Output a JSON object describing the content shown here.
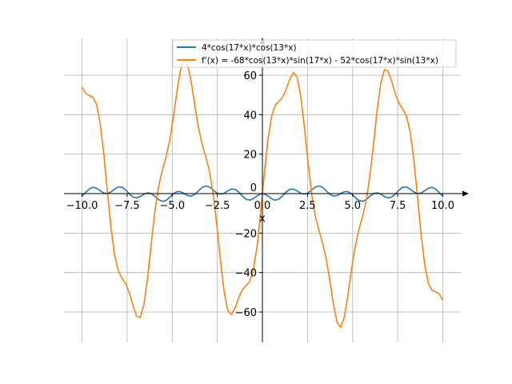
{
  "chart_data": {
    "type": "line",
    "xlabel": "x",
    "xlim": [
      -11,
      11
    ],
    "ylim": [
      -75,
      79
    ],
    "grid": true,
    "legend_position": "top-right",
    "x_ticks": [
      -10.0,
      -7.5,
      -5.0,
      -2.5,
      0.0,
      2.5,
      5.0,
      7.5,
      10.0
    ],
    "x_tick_labels": [
      "−10.0",
      "−7.5",
      "−5.0",
      "−2.5",
      "0.0",
      "2.5",
      "5.0",
      "7.5",
      "10.0"
    ],
    "y_ticks": [
      -60,
      -40,
      -20,
      0,
      20,
      40,
      60
    ],
    "y_tick_labels": [
      "−60",
      "−40",
      "−20",
      "0",
      "20",
      "40",
      "60"
    ],
    "sampling": {
      "start": -10,
      "end": 10,
      "samples": 100
    },
    "series": [
      {
        "name": "4*cos(17*x)*cos(13*x)",
        "color": "#1f77b4",
        "kind": "f"
      },
      {
        "name": "f'(x) = -68*cos(13*x)*sin(17*x) - 52*cos(17*x)*sin(13*x)",
        "color": "#ff7f0e",
        "kind": "df_mirrored"
      }
    ]
  }
}
